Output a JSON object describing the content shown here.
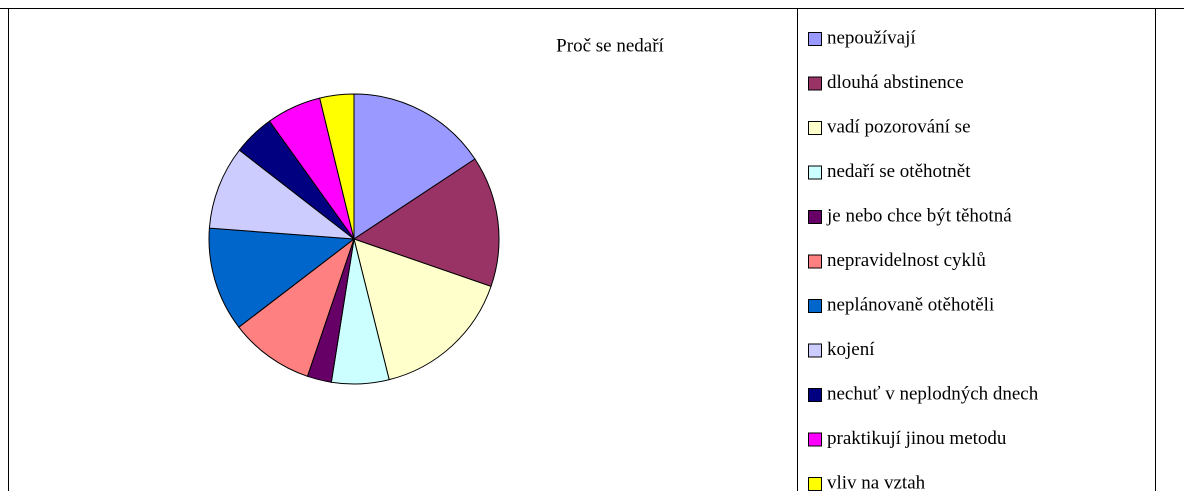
{
  "chart_data": {
    "type": "pie",
    "title": "Proč se nedaří",
    "categories": [
      "nepoužívají",
      "dlouhá abstinence",
      "vadí pozorování se",
      "nedaří se otěhotnět",
      "je nebo chce být těhotná",
      "nepravidelnost cyklů",
      "neplánovaně otěhotěli",
      "kojení",
      "nechuť v neplodných dnech",
      "praktikují jinou metodu",
      "vliv na vztah"
    ],
    "values": [
      15.7,
      14.6,
      15.8,
      6.4,
      2.7,
      9.4,
      11.6,
      9.3,
      4.6,
      6.1,
      3.8
    ],
    "colors": [
      "#9999ff",
      "#993366",
      "#ffffcc",
      "#ccffff",
      "#660066",
      "#ff8080",
      "#0066cc",
      "#ccccff",
      "#000080",
      "#ff00ff",
      "#ffff00"
    ],
    "legend": "right"
  }
}
